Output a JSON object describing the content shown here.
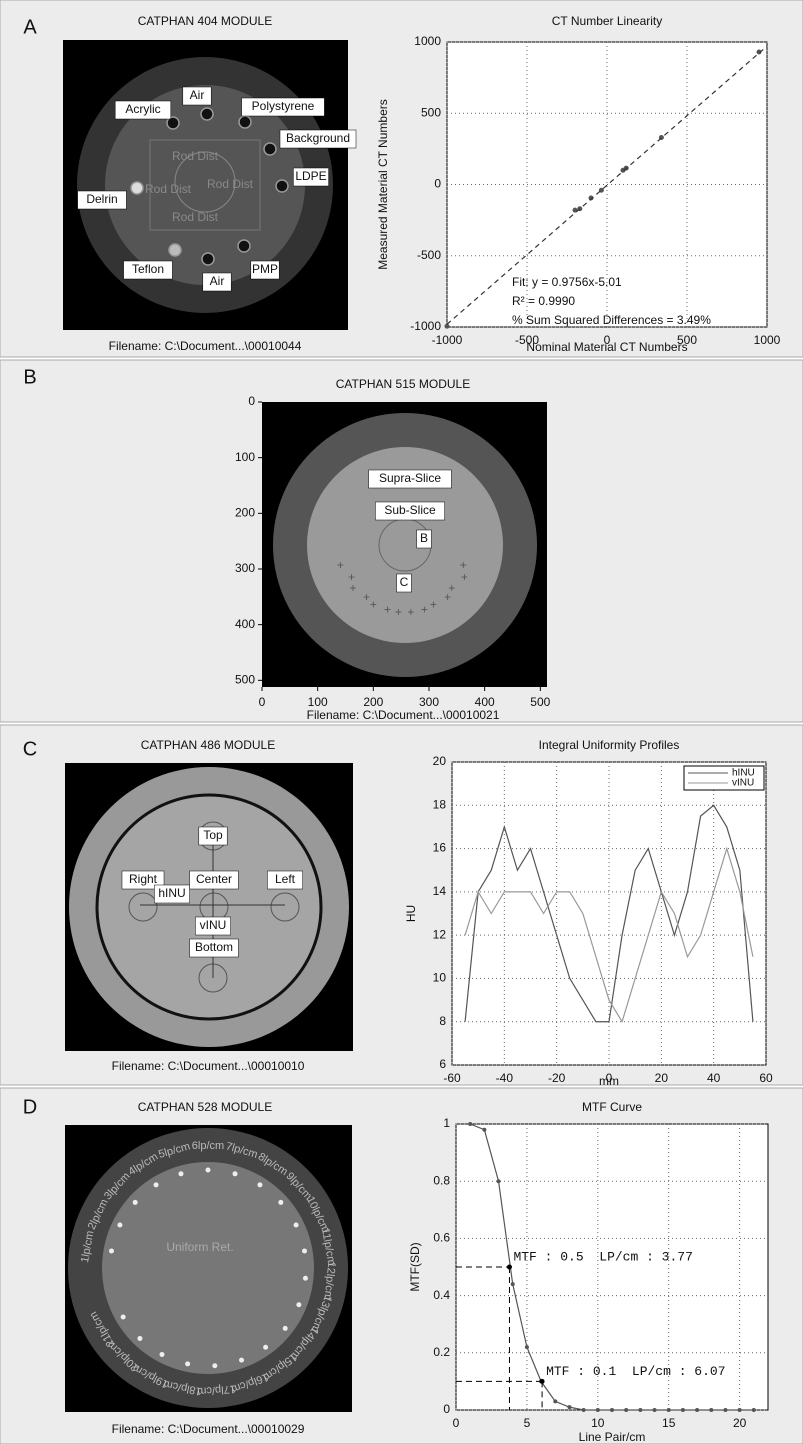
{
  "panels": [
    {
      "label": "A",
      "image": {
        "title": "CATPHAN 404 MODULE",
        "filename": "Filename: C:\\Document...\\00010044",
        "labels": [
          "Acrylic",
          "Air",
          "Polystyrene",
          "Background",
          "LDPE",
          "Delrin",
          "Teflon",
          "Air",
          "PMP"
        ],
        "faint_labels": [
          "Rod Dist",
          "Rod Dist",
          "Rod Dist",
          "Rod Dist"
        ]
      }
    },
    {
      "label": "B",
      "image": {
        "title": "CATPHAN 515 MODULE",
        "filename": "Filename: C:\\Document...\\00010021",
        "labels": [
          "Supra-Slice",
          "Sub-Slice",
          "B",
          "C"
        ],
        "xlim": [
          0,
          512
        ],
        "ylim": [
          0,
          512
        ],
        "xticks": [
          0,
          100,
          200,
          300,
          400,
          500
        ],
        "yticks": [
          0,
          100,
          200,
          300,
          400,
          500
        ]
      }
    },
    {
      "label": "C",
      "image": {
        "title": "CATPHAN 486 MODULE",
        "filename": "Filename: C:\\Document...\\00010010",
        "labels": [
          "Top",
          "Right",
          "hINU",
          "Center",
          "Left",
          "vINU",
          "Bottom"
        ]
      }
    },
    {
      "label": "D",
      "image": {
        "title": "CATPHAN 528 MODULE",
        "filename": "Filename: C:\\Document...\\00010029",
        "faint_labels": [
          "1lp/cm",
          "2lp/cm",
          "3lp/cm",
          "4lp/cm",
          "5lp/cm",
          "6lp/cm",
          "7lp/cm",
          "8lp/cm",
          "9lp/cm",
          "10lp/cm",
          "11lp/cm",
          "12lp/cm",
          "13lp/cm",
          "14lp/cm",
          "15lp/cm",
          "16lp/cm",
          "17lp/cm",
          "18lp/cm",
          "19lp/cm",
          "20lp/cm",
          "21lp/cm"
        ],
        "center_label": "Uniform Ret."
      }
    }
  ],
  "chart_data": [
    {
      "type": "scatter",
      "title": "CT Number Linearity",
      "xlabel": "Nominal Material CT Numbers",
      "ylabel": "Measured Material CT Numbers",
      "xlim": [
        -1000,
        1000
      ],
      "ylim": [
        -1000,
        1000
      ],
      "xticks": [
        -1000,
        -500,
        0,
        500,
        1000
      ],
      "yticks": [
        -1000,
        -500,
        0,
        500,
        1000
      ],
      "grid": true,
      "series": [
        {
          "color": "#555555",
          "mode": "markers",
          "x": [
            -1000,
            -200,
            -170,
            -100,
            -35,
            100,
            120,
            340,
            950
          ],
          "values": [
            -995,
            -180,
            -170,
            -95,
            -40,
            100,
            115,
            330,
            930
          ]
        },
        {
          "color": "#333333",
          "mode": "dashed-line",
          "x": [
            -1000,
            1000
          ],
          "values": [
            -980.6,
            970.6
          ]
        }
      ],
      "annotations": [
        "Fit: y = 0.9756x-5.01",
        "R² = 0.9990",
        "% Sum Squared Differences = 3.49%"
      ]
    },
    {
      "type": "line",
      "title": "Integral Uniformity Profiles",
      "xlabel": "mm",
      "ylabel": "HU",
      "xlim": [
        -60,
        60
      ],
      "ylim": [
        6,
        20
      ],
      "xticks": [
        -60,
        -40,
        -20,
        0,
        20,
        40,
        60
      ],
      "yticks": [
        6,
        8,
        10,
        12,
        14,
        16,
        18,
        20
      ],
      "grid": true,
      "legend": "upper right",
      "series": [
        {
          "name": "hINU",
          "color": "#555555",
          "x": [
            -55,
            -50,
            -45,
            -40,
            -35,
            -30,
            -25,
            -20,
            -15,
            -10,
            -5,
            0,
            5,
            10,
            15,
            20,
            25,
            30,
            35,
            40,
            45,
            50,
            55
          ],
          "values": [
            8,
            14,
            15,
            17,
            15,
            16,
            14,
            12,
            10,
            9,
            8,
            8,
            12,
            15,
            16,
            14,
            12,
            14,
            17.5,
            18,
            17,
            15,
            8
          ]
        },
        {
          "name": "vINU",
          "color": "#999999",
          "x": [
            -55,
            -50,
            -45,
            -40,
            -35,
            -30,
            -25,
            -20,
            -15,
            -10,
            -5,
            0,
            5,
            10,
            15,
            20,
            25,
            30,
            35,
            40,
            45,
            50,
            55
          ],
          "values": [
            12,
            14,
            13,
            14,
            14,
            14,
            13,
            14,
            14,
            13,
            11,
            9,
            8,
            10,
            12,
            14,
            13,
            11,
            12,
            14,
            16,
            14,
            11
          ]
        }
      ]
    },
    {
      "type": "line",
      "title": "MTF Curve",
      "xlabel": "Line Pair/cm",
      "ylabel": "MTF(SD)",
      "xlim": [
        0,
        22
      ],
      "ylim": [
        0,
        1
      ],
      "xticks": [
        0,
        5,
        10,
        15,
        20
      ],
      "yticks": [
        0,
        0.2,
        0.4,
        0.6,
        0.8,
        1
      ],
      "grid": true,
      "series": [
        {
          "color": "#555555",
          "markers": true,
          "x": [
            1,
            2,
            3,
            4,
            5,
            6,
            7,
            8,
            9,
            10,
            11,
            12,
            13,
            14,
            15,
            16,
            17,
            18,
            19,
            20,
            21
          ],
          "values": [
            1,
            0.98,
            0.8,
            0.44,
            0.22,
            0.1,
            0.03,
            0.01,
            0,
            0,
            0,
            0,
            0,
            0,
            0,
            0,
            0,
            0,
            0,
            0,
            0
          ]
        }
      ],
      "markers": [
        {
          "x": 3.77,
          "y": 0.5,
          "label": "MTF : 0.5  LP/cm : 3.77"
        },
        {
          "x": 6.07,
          "y": 0.1,
          "label": "MTF : 0.1  LP/cm : 6.07"
        }
      ]
    }
  ]
}
